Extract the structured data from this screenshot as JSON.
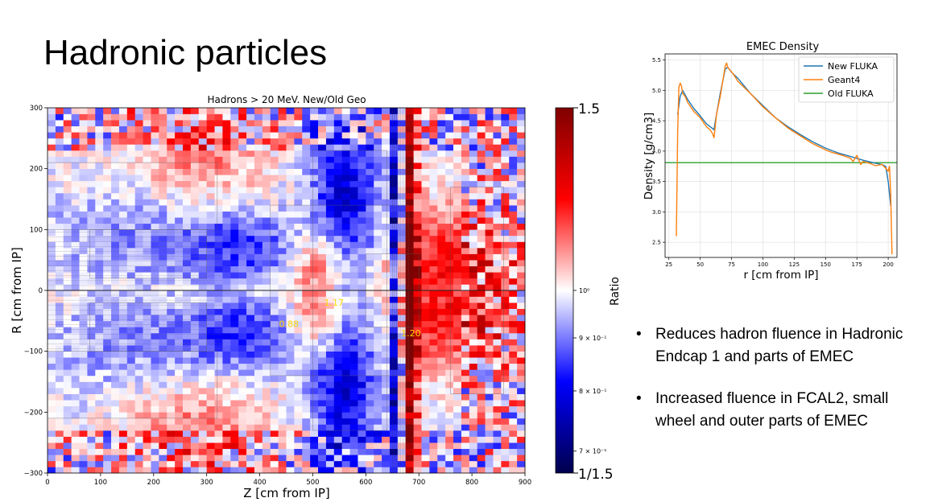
{
  "slide": {
    "title": "Hadronic particles",
    "bullets": [
      "Reduces hadron fluence in Hadronic Endcap 1 and parts of EMEC",
      "Increased fluence in FCAL2, small wheel and outer parts of EMEC"
    ],
    "bullet_glyph": "•"
  },
  "chart_data": [
    {
      "type": "heatmap",
      "title": "Hadrons > 20 MeV. New/Old Geo",
      "xlabel": "Z [cm from IP]",
      "ylabel": "R [cm from IP]",
      "xlim": [
        0,
        900
      ],
      "ylim": [
        -300,
        300
      ],
      "xticks": [
        "0",
        "100",
        "200",
        "300",
        "400",
        "500",
        "600",
        "700",
        "800",
        "900"
      ],
      "yticks": [
        "300",
        "200",
        "100",
        "0",
        "−100",
        "−200",
        "−300"
      ],
      "colorbar": {
        "label": "Ratio",
        "scale": "log",
        "range": [
          0.6667,
          1.5
        ],
        "top_label": "1.5",
        "bottom_label": "1/1.5",
        "ticks": [
          {
            "value": 1.0,
            "label": "10⁰"
          },
          {
            "value": 0.9,
            "label": "9 × 10⁻¹"
          },
          {
            "value": 0.8,
            "label": "8 × 10⁻¹"
          },
          {
            "value": 0.7,
            "label": "7 × 10⁻¹"
          }
        ],
        "colors": [
          "#00004c",
          "#0000ff",
          "#ffffff",
          "#ff0000",
          "#7f0000"
        ]
      },
      "annotations": [
        {
          "text": "1.17",
          "z": 540,
          "r": -25
        },
        {
          "text": "0.88",
          "z": 455,
          "r": -60
        },
        {
          "text": "1.20",
          "z": 685,
          "r": -75
        }
      ],
      "annotation_color": "#ffd700"
    },
    {
      "type": "line",
      "title": "EMEC Density",
      "xlabel": "r [cm from IP]",
      "ylabel": "Density [g/cm3]",
      "xlim": [
        22,
        207
      ],
      "ylim": [
        2.25,
        5.6
      ],
      "xticks": [
        25,
        50,
        75,
        100,
        125,
        150,
        175,
        200
      ],
      "yticks": [
        2.5,
        3.0,
        3.5,
        4.0,
        4.5,
        5.0,
        5.5
      ],
      "grid": true,
      "legend": "top-right",
      "series": [
        {
          "name": "New FLUKA",
          "color": "#1f77b4",
          "x": [
            32,
            34,
            36,
            40,
            45,
            50,
            55,
            60,
            61,
            63,
            66,
            70,
            72,
            75,
            80,
            90,
            100,
            110,
            120,
            130,
            140,
            150,
            160,
            170,
            180,
            190,
            195,
            198,
            200,
            202
          ],
          "y": [
            4.6,
            4.9,
            5.0,
            4.85,
            4.7,
            4.58,
            4.45,
            4.37,
            4.35,
            4.6,
            4.95,
            5.35,
            5.38,
            5.3,
            5.2,
            4.95,
            4.75,
            4.55,
            4.4,
            4.27,
            4.15,
            4.05,
            3.97,
            3.91,
            3.85,
            3.8,
            3.78,
            3.75,
            3.5,
            3.1
          ]
        },
        {
          "name": "Geant4",
          "color": "#ff7f0e",
          "x": [
            31,
            32,
            33,
            34,
            35,
            36,
            38,
            40,
            45,
            50,
            55,
            58,
            60,
            61,
            62,
            63,
            66,
            70,
            71,
            72,
            74,
            77,
            80,
            90,
            100,
            110,
            120,
            130,
            140,
            150,
            155,
            160,
            165,
            170,
            172,
            175,
            178,
            180,
            185,
            190,
            195,
            198,
            200,
            201,
            202,
            203
          ],
          "y": [
            2.6,
            4.3,
            5.05,
            5.12,
            5.08,
            4.95,
            4.9,
            4.8,
            4.65,
            4.55,
            4.4,
            4.35,
            4.28,
            4.22,
            4.4,
            4.6,
            4.9,
            5.4,
            5.45,
            5.38,
            5.33,
            5.25,
            5.15,
            4.95,
            4.73,
            4.55,
            4.38,
            4.25,
            4.12,
            4.02,
            3.98,
            3.95,
            3.92,
            3.88,
            3.83,
            3.93,
            3.78,
            3.83,
            3.8,
            3.76,
            3.78,
            3.72,
            3.67,
            3.75,
            3.3,
            2.3
          ]
        },
        {
          "name": "Old FLUKA",
          "color": "#2ca02c",
          "x": [
            22,
            207
          ],
          "y": [
            3.81,
            3.81
          ]
        }
      ]
    }
  ]
}
